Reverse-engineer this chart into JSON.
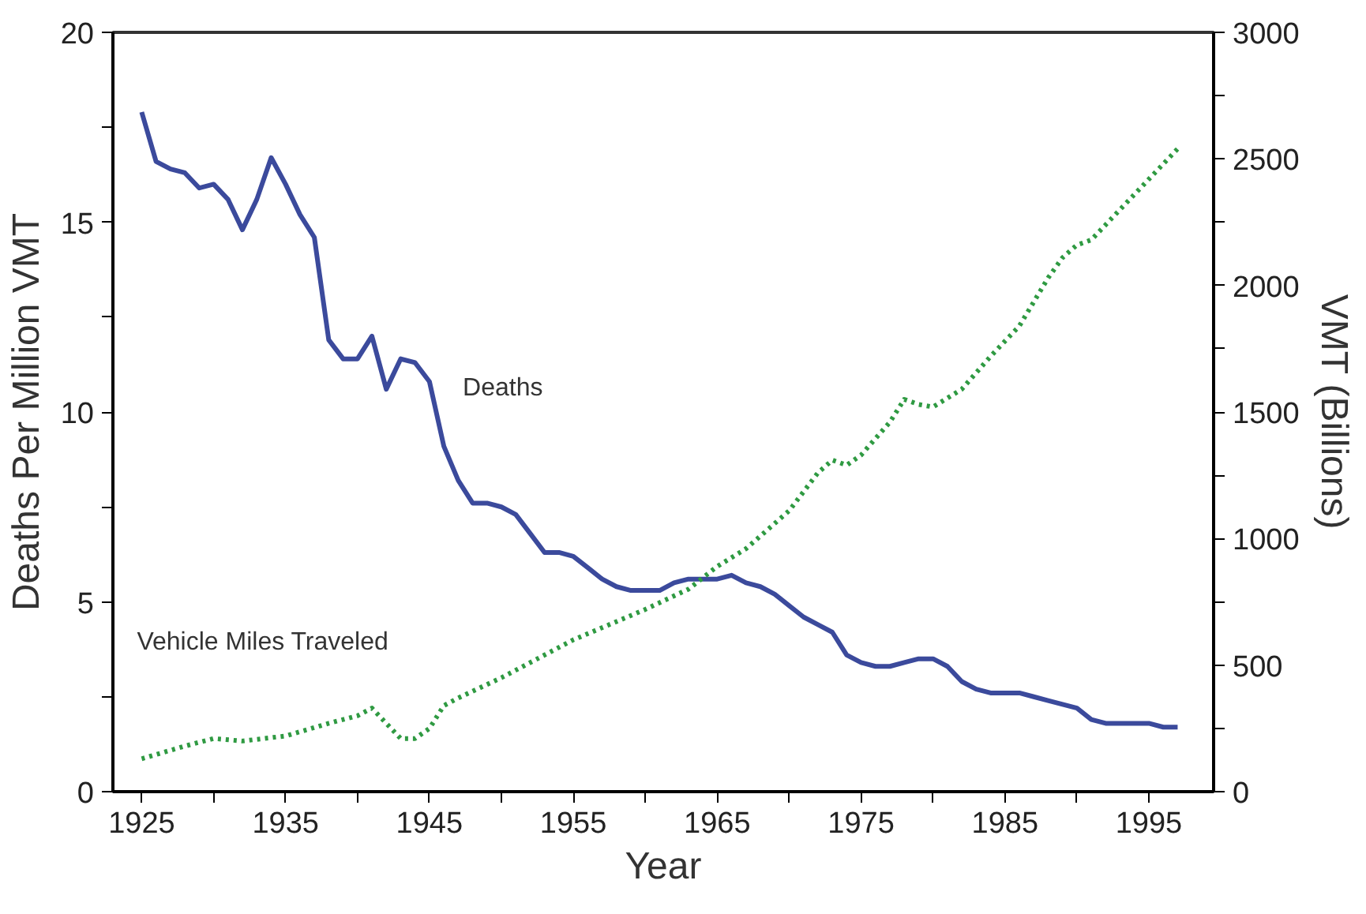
{
  "chart_data": {
    "type": "line",
    "xlabel": "Year",
    "ylabel": "Deaths Per Million VMT",
    "y2label": "VMT (Billions)",
    "xlim": [
      1923,
      1999.5
    ],
    "ylim": [
      0,
      20
    ],
    "y2lim": [
      0,
      3000
    ],
    "xticks": [
      1925,
      {
        "value": 1930,
        "label": null
      },
      1935,
      {
        "value": 1940,
        "label": null
      },
      1945,
      {
        "value": 1950,
        "label": null
      },
      1955,
      {
        "value": 1960,
        "label": null
      },
      1965,
      {
        "value": 1970,
        "label": null
      },
      1975,
      {
        "value": 1980,
        "label": null
      },
      1985,
      {
        "value": 1990,
        "label": null
      },
      1995
    ],
    "yticks": [
      0,
      {
        "value": 2.5,
        "label": null
      },
      5,
      {
        "value": 7.5,
        "label": null
      },
      10,
      {
        "value": 12.5,
        "label": null
      },
      15,
      {
        "value": 17.5,
        "label": null
      },
      20
    ],
    "y2ticks": [
      0,
      {
        "value": 250,
        "label": null
      },
      500,
      {
        "value": 750,
        "label": null
      },
      1000,
      {
        "value": 1250,
        "label": null
      },
      1500,
      {
        "value": 1750,
        "label": null
      },
      2000,
      {
        "value": 2250,
        "label": null
      },
      2500,
      {
        "value": 2750,
        "label": null
      },
      3000
    ],
    "grid": false,
    "series": [
      {
        "name": "Deaths",
        "color": "#3b4a9c",
        "line_style": "solid",
        "x": [
          1925,
          1926,
          1927,
          1928,
          1929,
          1930,
          1931,
          1932,
          1933,
          1934,
          1935,
          1936,
          1937,
          1938,
          1939,
          1940,
          1941,
          1942,
          1943,
          1944,
          1945,
          1946,
          1947,
          1948,
          1949,
          1950,
          1951,
          1952,
          1953,
          1954,
          1955,
          1956,
          1957,
          1958,
          1959,
          1960,
          1961,
          1962,
          1963,
          1964,
          1965,
          1966,
          1967,
          1968,
          1969,
          1970,
          1971,
          1972,
          1973,
          1974,
          1975,
          1976,
          1977,
          1978,
          1979,
          1980,
          1981,
          1982,
          1983,
          1984,
          1985,
          1986,
          1987,
          1988,
          1989,
          1990,
          1991,
          1992,
          1993,
          1994,
          1995,
          1996,
          1997
        ],
        "values": [
          17.9,
          16.6,
          16.4,
          16.3,
          15.9,
          16.0,
          15.6,
          14.8,
          15.6,
          16.7,
          16.0,
          15.2,
          14.6,
          11.9,
          11.4,
          11.4,
          12.0,
          10.6,
          11.4,
          11.3,
          10.8,
          9.1,
          8.2,
          7.6,
          7.6,
          7.5,
          7.3,
          6.8,
          6.3,
          6.3,
          6.2,
          5.9,
          5.6,
          5.4,
          5.3,
          5.3,
          5.3,
          5.5,
          5.6,
          5.6,
          5.6,
          5.7,
          5.5,
          5.4,
          5.2,
          4.9,
          4.6,
          4.4,
          4.2,
          3.6,
          3.4,
          3.3,
          3.3,
          3.4,
          3.5,
          3.5,
          3.3,
          2.9,
          2.7,
          2.6,
          2.6,
          2.6,
          2.5,
          2.4,
          2.3,
          2.2,
          1.9,
          1.8,
          1.8,
          1.8,
          1.8,
          1.7,
          1.7
        ]
      },
      {
        "name": "Vehicle Miles Traveled",
        "color": "#2f9a42",
        "line_style": "dotted",
        "axis": "y2",
        "x": [
          1925,
          1928,
          1930,
          1932,
          1935,
          1938,
          1940,
          1941,
          1942,
          1943,
          1944,
          1945,
          1946,
          1947,
          1950,
          1955,
          1960,
          1963,
          1965,
          1967,
          1970,
          1972,
          1973,
          1974,
          1975,
          1977,
          1978,
          1979,
          1980,
          1982,
          1984,
          1986,
          1988,
          1989,
          1990,
          1991,
          1992,
          1994,
          1996,
          1997
        ],
        "values": [
          130,
          180,
          210,
          200,
          220,
          270,
          300,
          330,
          270,
          210,
          210,
          250,
          340,
          370,
          450,
          600,
          720,
          800,
          890,
          960,
          1110,
          1260,
          1310,
          1290,
          1330,
          1460,
          1550,
          1530,
          1520,
          1590,
          1720,
          1840,
          2030,
          2110,
          2160,
          2180,
          2240,
          2360,
          2480,
          2540
        ]
      }
    ]
  }
}
